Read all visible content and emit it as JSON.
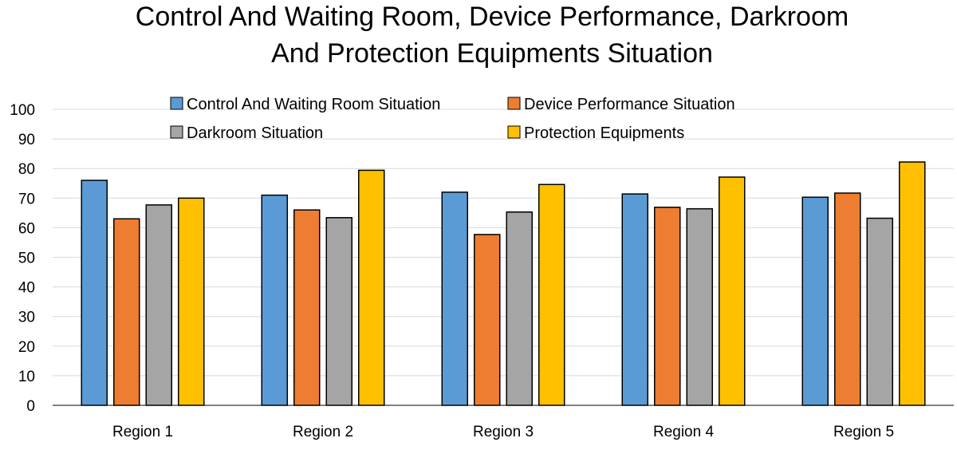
{
  "chart_data": {
    "type": "bar",
    "title_lines": [
      "Control And Waiting Room, Device Performance, Darkroom",
      "And Protection Equipments Situation"
    ],
    "categories": [
      "Region 1",
      "Region 2",
      "Region 3",
      "Region 4",
      "Region 5"
    ],
    "series": [
      {
        "name": "Control And Waiting Room Situation",
        "color": "#5b9bd5",
        "values": [
          76,
          71,
          72,
          71.4,
          70.3
        ]
      },
      {
        "name": "Device Performance Situation",
        "color": "#ed7d31",
        "values": [
          63,
          66,
          57.7,
          66.9,
          71.7
        ]
      },
      {
        "name": "Darkroom Situation",
        "color": "#a5a5a5",
        "values": [
          67.7,
          63.4,
          65.3,
          66.4,
          63.2
        ]
      },
      {
        "name": "Protection Equipments",
        "color": "#ffc000",
        "values": [
          70,
          79.4,
          74.6,
          77.1,
          82.2
        ]
      }
    ],
    "ylim": [
      0,
      100
    ],
    "yticks": [
      "0",
      "10",
      "20",
      "30",
      "40",
      "50",
      "60",
      "70",
      "80",
      "90",
      "100"
    ],
    "grid": true,
    "legend_position": "top"
  }
}
